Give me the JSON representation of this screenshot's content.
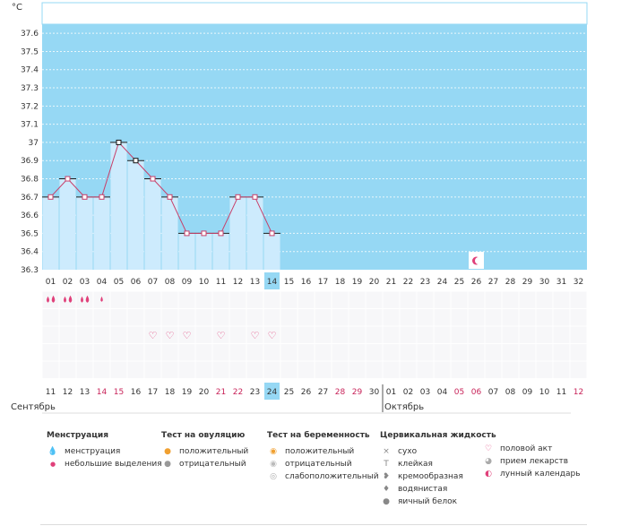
{
  "chart_data": {
    "type": "area",
    "unit_label": "°С",
    "y_ticks": [
      "37.6",
      "37.5",
      "37.4",
      "37.3",
      "37.2",
      "37.1",
      "37",
      "36.9",
      "36.8",
      "36.7",
      "36.6",
      "36.5",
      "36.4",
      "36.3"
    ],
    "ylim": [
      36.3,
      37.65
    ],
    "day_labels": [
      "01",
      "02",
      "03",
      "04",
      "05",
      "06",
      "07",
      "08",
      "09",
      "10",
      "11",
      "12",
      "13",
      "14",
      "15",
      "16",
      "17",
      "18",
      "19",
      "20",
      "21",
      "22",
      "23",
      "24",
      "25",
      "26",
      "27",
      "28",
      "29",
      "30",
      "31",
      "32"
    ],
    "temperatures": [
      36.7,
      36.8,
      36.7,
      36.7,
      37.0,
      36.9,
      36.8,
      36.7,
      36.5,
      36.5,
      36.5,
      36.7,
      36.7,
      36.5
    ],
    "cursor_point_indices": [
      4,
      5
    ],
    "current_day_index": 13,
    "date_labels": [
      "11",
      "12",
      "13",
      "14",
      "15",
      "16",
      "17",
      "18",
      "19",
      "20",
      "21",
      "22",
      "23",
      "24",
      "25",
      "26",
      "27",
      "28",
      "29",
      "30",
      "01",
      "02",
      "03",
      "04",
      "05",
      "06",
      "07",
      "08",
      "09",
      "10",
      "11",
      "12"
    ],
    "weekend_date_indices": [
      3,
      4,
      10,
      11,
      17,
      18,
      24,
      25,
      31
    ],
    "month_labels": [
      "Сентябрь",
      "Октябрь"
    ],
    "month_start_indices": [
      0,
      20
    ],
    "menstruation_days": [
      {
        "day": 0,
        "kind": "heavy"
      },
      {
        "day": 1,
        "kind": "heavy"
      },
      {
        "day": 2,
        "kind": "heavy"
      },
      {
        "day": 3,
        "kind": "light"
      }
    ],
    "intercourse_days": [
      6,
      7,
      8,
      10,
      12,
      13
    ],
    "moon_day_index": 25,
    "colors": {
      "background": "#96d8f4",
      "fill": "#cdebfd",
      "line": "#c8406a",
      "current_day": "#96d8f4",
      "weekend": "#c8245a",
      "accent": "#e0407a"
    }
  },
  "legend": {
    "menstruation": {
      "title": "Менструация",
      "items": [
        {
          "icon": "drops-icon",
          "label": "менструация"
        },
        {
          "icon": "drop-small-icon",
          "label": "небольшие выделения"
        }
      ]
    },
    "ovulation": {
      "title": "Тест на овуляцию",
      "items": [
        {
          "icon": "positive-test-icon",
          "label": "положительный"
        },
        {
          "icon": "negative-test-icon",
          "label": "отрицательный"
        }
      ]
    },
    "pregnancy": {
      "title": "Тест на беременность",
      "items": [
        {
          "icon": "positive-test-icon",
          "label": "положительный"
        },
        {
          "icon": "negative-test-icon",
          "label": "отрицательный"
        },
        {
          "icon": "weak-test-icon",
          "label": "слабоположительный"
        }
      ]
    },
    "fluid": {
      "title": "Цервикальная жидкость",
      "items": [
        {
          "icon": "cross-icon",
          "label": "сухо"
        },
        {
          "icon": "sticky-icon",
          "label": "клейкая"
        },
        {
          "icon": "creamy-icon",
          "label": "кремообразная"
        },
        {
          "icon": "watery-icon",
          "label": "водянистая"
        },
        {
          "icon": "eggwhite-icon",
          "label": "яичный белок"
        }
      ]
    },
    "other": {
      "items": [
        {
          "icon": "heart-icon",
          "label": "половой акт"
        },
        {
          "icon": "pill-icon",
          "label": "прием лекарств"
        },
        {
          "icon": "moon-icon",
          "label": "лунный календарь"
        }
      ]
    }
  }
}
